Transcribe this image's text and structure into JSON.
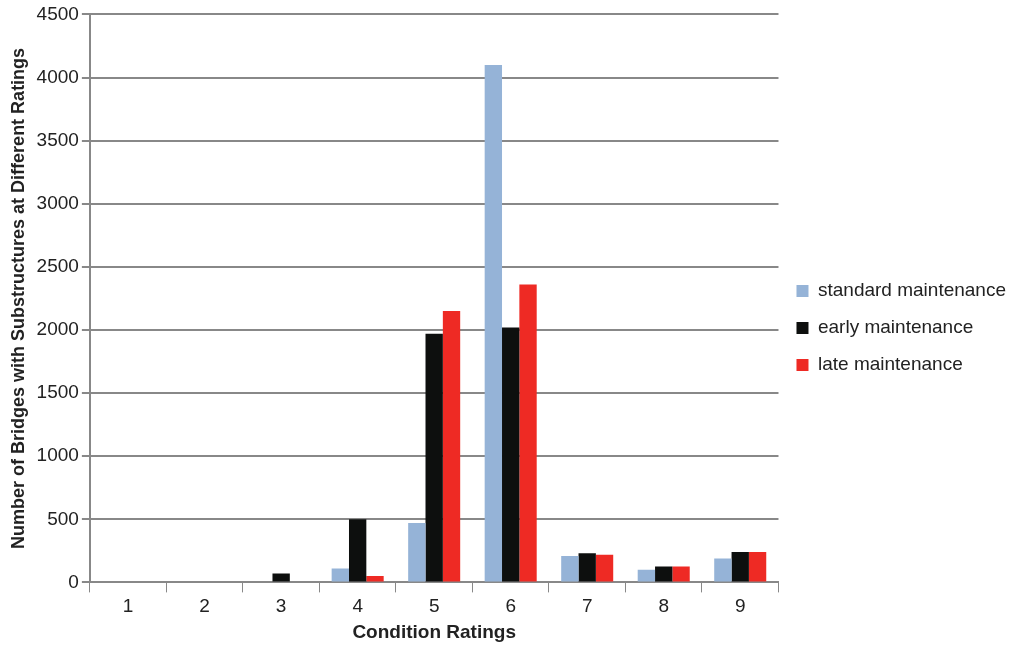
{
  "chart_data": {
    "type": "bar",
    "xlabel": "Condition Ratings",
    "ylabel": "Number of Bridges with Substructures at Different Ratings",
    "categories": [
      "1",
      "2",
      "3",
      "4",
      "5",
      "6",
      "7",
      "8",
      "9"
    ],
    "series": [
      {
        "name": "standard maintenance",
        "color": "#95b3d7",
        "values": [
          0,
          0,
          0,
          110,
          470,
          4100,
          210,
          100,
          190
        ]
      },
      {
        "name": "early maintenance",
        "color": "#0d0f0e",
        "values": [
          0,
          0,
          70,
          500,
          1970,
          2020,
          230,
          125,
          240
        ]
      },
      {
        "name": "late maintenance",
        "color": "#ee2a24",
        "values": [
          0,
          0,
          0,
          50,
          2150,
          2360,
          220,
          125,
          240
        ]
      }
    ],
    "ylim": [
      0,
      4500
    ],
    "yticks": [
      0,
      500,
      1000,
      1500,
      2000,
      2500,
      3000,
      3500,
      4000,
      4500
    ],
    "grid": "y",
    "legend": "right"
  }
}
